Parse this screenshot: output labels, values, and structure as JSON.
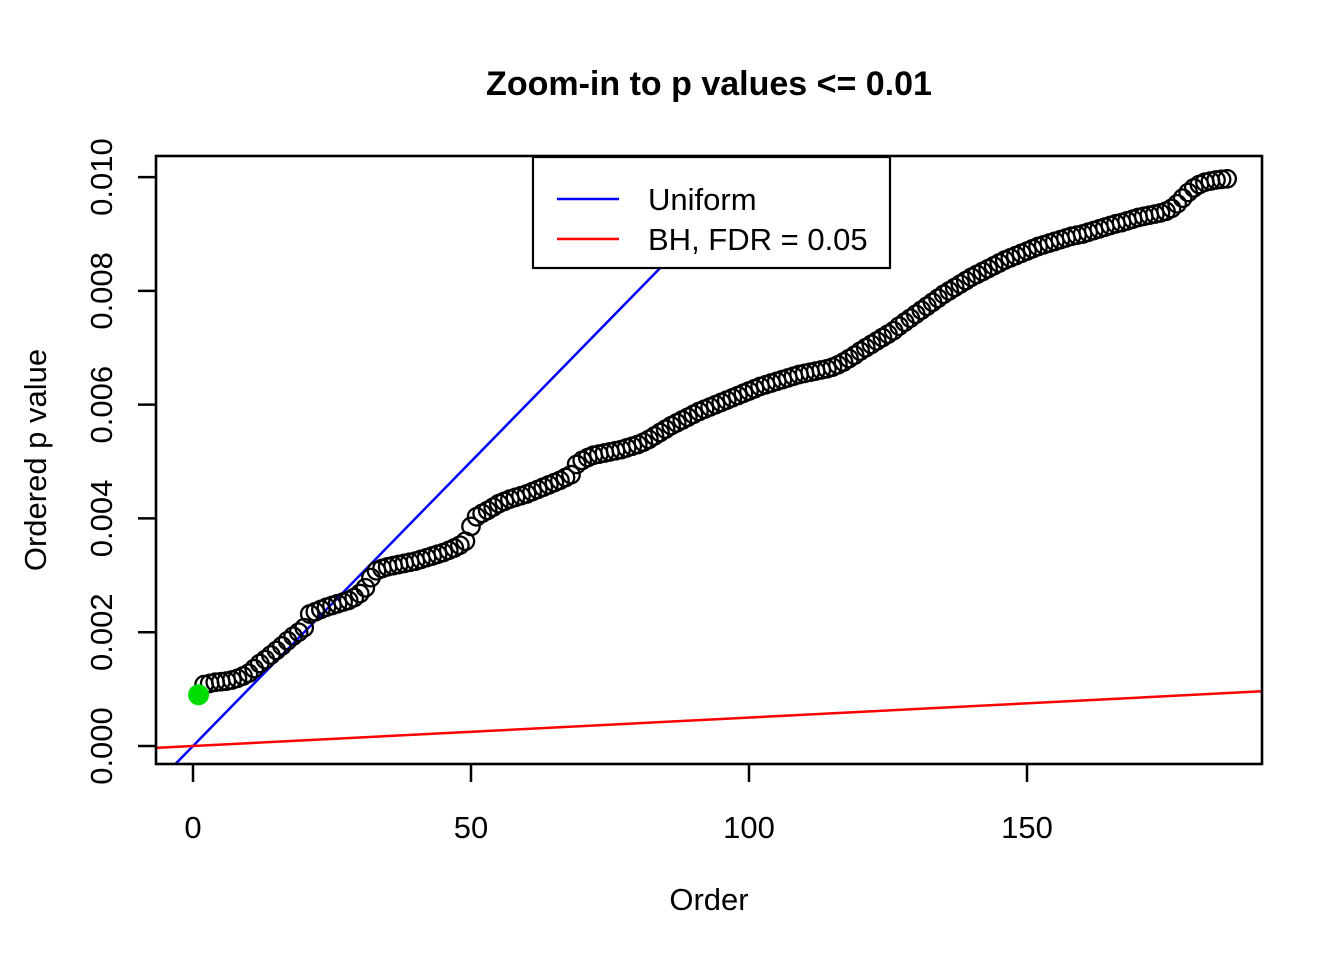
{
  "figure": {
    "title": "Zoom-in to p values <= 0.01",
    "x_axis_label": "Order",
    "y_axis_label": "Ordered p value"
  },
  "chart_data": {
    "type": "scatter",
    "title": "Zoom-in to p values <= 0.01",
    "xlabel": "Order",
    "ylabel": "Ordered p value",
    "xlim": [
      0,
      186
    ],
    "ylim": [
      0.0,
      0.01
    ],
    "x_ticks": [
      0,
      50,
      100,
      150
    ],
    "y_ticks": [
      {
        "value": 0.0,
        "label": "0.000"
      },
      {
        "value": 0.002,
        "label": "0.002"
      },
      {
        "value": 0.004,
        "label": "0.004"
      },
      {
        "value": 0.006,
        "label": "0.006"
      },
      {
        "value": 0.008,
        "label": "0.008"
      },
      {
        "value": 0.01,
        "label": "0.010"
      }
    ],
    "grid": false,
    "legend_position": "inside top, center-right",
    "legend": [
      {
        "label": "Uniform",
        "color": "#0000FF"
      },
      {
        "label": "BH, FDR = 0.05",
        "color": "#FF0000"
      }
    ],
    "series": [
      {
        "name": "ordered-p-values",
        "type": "scatter",
        "marker": "open-circle",
        "color": "#000000",
        "x_start": 1,
        "x_step": 1,
        "y": [
          0.0009,
          0.00108,
          0.0011,
          0.00112,
          0.00113,
          0.00114,
          0.00116,
          0.00119,
          0.00123,
          0.00128,
          0.00136,
          0.00145,
          0.00152,
          0.0016,
          0.00168,
          0.00176,
          0.00185,
          0.00193,
          0.002,
          0.00208,
          0.00232,
          0.00236,
          0.0024,
          0.00244,
          0.00247,
          0.0025,
          0.00253,
          0.00256,
          0.00261,
          0.00268,
          0.00278,
          0.00296,
          0.00308,
          0.00312,
          0.00315,
          0.00317,
          0.00319,
          0.00321,
          0.00323,
          0.00325,
          0.00328,
          0.00331,
          0.00334,
          0.00337,
          0.0034,
          0.00344,
          0.00348,
          0.00353,
          0.0036,
          0.00386,
          0.00403,
          0.00409,
          0.00414,
          0.0042,
          0.00426,
          0.0043,
          0.00434,
          0.00437,
          0.0044,
          0.00443,
          0.00447,
          0.00451,
          0.00455,
          0.00459,
          0.00463,
          0.00467,
          0.00472,
          0.00477,
          0.00495,
          0.00502,
          0.00507,
          0.00511,
          0.00513,
          0.00515,
          0.00517,
          0.00519,
          0.00521,
          0.00524,
          0.00527,
          0.0053,
          0.00534,
          0.00539,
          0.00545,
          0.00551,
          0.00557,
          0.00563,
          0.00568,
          0.00573,
          0.00578,
          0.00583,
          0.00588,
          0.00592,
          0.00596,
          0.006,
          0.00604,
          0.00608,
          0.00612,
          0.00616,
          0.0062,
          0.00624,
          0.00628,
          0.00632,
          0.00635,
          0.00638,
          0.00641,
          0.00644,
          0.00647,
          0.0065,
          0.00653,
          0.00655,
          0.00657,
          0.00659,
          0.00661,
          0.00663,
          0.00666,
          0.0067,
          0.00675,
          0.00681,
          0.00687,
          0.00694,
          0.007,
          0.00706,
          0.00712,
          0.00718,
          0.00724,
          0.0073,
          0.00738,
          0.00745,
          0.00752,
          0.00759,
          0.00766,
          0.00773,
          0.0078,
          0.00787,
          0.00794,
          0.008,
          0.00806,
          0.00812,
          0.00818,
          0.00824,
          0.00829,
          0.00834,
          0.00839,
          0.00844,
          0.00849,
          0.00854,
          0.00858,
          0.00862,
          0.00866,
          0.0087,
          0.00874,
          0.00878,
          0.00881,
          0.00884,
          0.00887,
          0.0089,
          0.00893,
          0.00896,
          0.00898,
          0.009,
          0.00903,
          0.00906,
          0.00909,
          0.00912,
          0.00915,
          0.00918,
          0.0092,
          0.00923,
          0.00926,
          0.00929,
          0.00931,
          0.00933,
          0.00935,
          0.00937,
          0.0094,
          0.00945,
          0.00953,
          0.00963,
          0.00973,
          0.00981,
          0.00987,
          0.00991,
          0.00993,
          0.00995,
          0.00996,
          0.00997
        ]
      },
      {
        "name": "smallest-p-value-highlight",
        "type": "scatter",
        "marker": "filled-circle",
        "color": "#00DD00",
        "x": [
          1
        ],
        "y": [
          0.0009
        ]
      },
      {
        "name": "Uniform",
        "type": "line",
        "color": "#0000FF",
        "slope": 0.0001,
        "intercept": 0
      },
      {
        "name": "BH, FDR = 0.05",
        "type": "line",
        "color": "#FF0000",
        "slope": 5e-06,
        "intercept": 0
      }
    ]
  }
}
